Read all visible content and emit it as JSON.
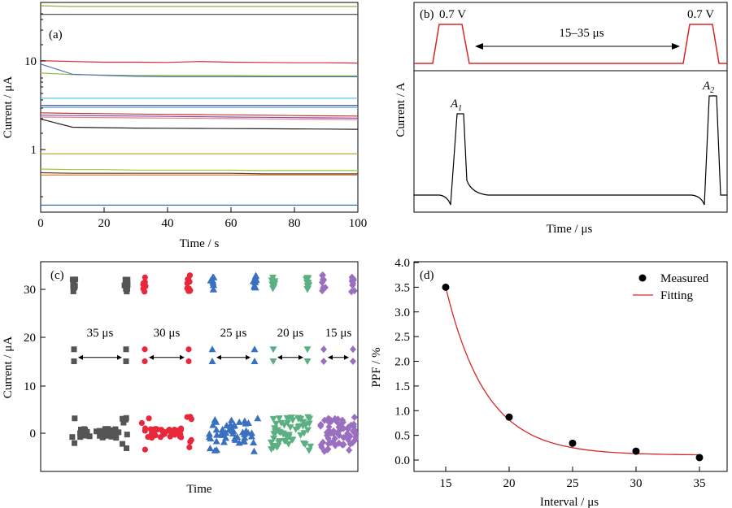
{
  "chart_data": [
    {
      "panel": "a",
      "type": "line",
      "panel_label": "(a)",
      "xlabel": "Time / s",
      "ylabel": "Current / μA",
      "xlim": [
        0,
        100
      ],
      "ylim": [
        0.25,
        60
      ],
      "yscale": "log",
      "xticks": [
        "0",
        "20",
        "40",
        "60",
        "80",
        "100"
      ],
      "yticks": [
        "1",
        "10"
      ],
      "series": [
        {
          "color": "#8db43c",
          "y": [
            55,
            54,
            54,
            54,
            54,
            54,
            54,
            54,
            54,
            54,
            54
          ]
        },
        {
          "color": "#555555",
          "y": [
            44,
            44,
            44,
            44,
            44,
            44,
            44,
            44,
            44,
            44,
            44
          ]
        },
        {
          "color": "#d8283a",
          "y": [
            13.1,
            12.8,
            12.6,
            12.6,
            12.5,
            12.8,
            12.6,
            12.5,
            12.4,
            12.4,
            12.3
          ]
        },
        {
          "color": "#8db43c",
          "y": [
            9.5,
            9.1,
            9.0,
            8.9,
            8.9,
            8.9,
            8.9,
            8.8,
            8.8,
            8.8,
            8.8
          ]
        },
        {
          "color": "#4b72be",
          "y": [
            12,
            9.2,
            8.9,
            8.7,
            8.6,
            8.6,
            8.6,
            8.6,
            8.6,
            8.6,
            8.6
          ]
        },
        {
          "color": "#5bc4e8",
          "y": [
            4.9,
            4.9,
            4.9,
            4.9,
            4.9,
            4.9,
            4.9,
            4.9,
            4.9,
            4.9,
            4.9
          ]
        },
        {
          "color": "#2a4a9c",
          "y": [
            4.05,
            4.05,
            4.05,
            4.05,
            4.05,
            4.05,
            4.05,
            4.05,
            4.05,
            4.05,
            4.05
          ]
        },
        {
          "color": "#6fa8dc",
          "y": [
            3.85,
            3.85,
            3.85,
            3.85,
            3.85,
            3.85,
            3.85,
            3.85,
            3.85,
            3.85,
            3.85
          ]
        },
        {
          "color": "#c0392b",
          "y": [
            3.35,
            3.3,
            3.28,
            3.25,
            3.22,
            3.2,
            3.18,
            3.15,
            3.12,
            3.1,
            3.08
          ]
        },
        {
          "color": "#8e44ad",
          "y": [
            3.15,
            3.12,
            3.1,
            3.08,
            3.05,
            3.03,
            3.0,
            2.98,
            2.96,
            2.94,
            2.92
          ]
        },
        {
          "color": "#e08080",
          "y": [
            3.0,
            2.98,
            2.96,
            2.94,
            2.92,
            2.9,
            2.88,
            2.86,
            2.84,
            2.82,
            2.8
          ]
        },
        {
          "color": "#222222",
          "y": [
            2.85,
            2.3,
            2.27,
            2.25,
            2.24,
            2.23,
            2.22,
            2.21,
            2.2,
            2.19,
            2.18
          ]
        },
        {
          "color": "#b8a020",
          "y": [
            1.15,
            1.15,
            1.15,
            1.15,
            1.15,
            1.15,
            1.15,
            1.15,
            1.15,
            1.15,
            1.15
          ]
        },
        {
          "color": "#9acd32",
          "y": [
            0.77,
            0.76,
            0.76,
            0.75,
            0.75,
            0.75,
            0.75,
            0.74,
            0.74,
            0.74,
            0.74
          ]
        },
        {
          "color": "#5a3a2a",
          "y": [
            0.7,
            0.69,
            0.69,
            0.69,
            0.69,
            0.69,
            0.69,
            0.68,
            0.68,
            0.68,
            0.68
          ]
        },
        {
          "color": "#e07020",
          "y": [
            0.66,
            0.66,
            0.66,
            0.66,
            0.66,
            0.66,
            0.66,
            0.66,
            0.66,
            0.66,
            0.66
          ]
        },
        {
          "color": "#3a6ec8",
          "y": [
            0.3,
            0.3,
            0.3,
            0.3,
            0.3,
            0.3,
            0.3,
            0.3,
            0.3,
            0.3,
            0.3
          ]
        }
      ],
      "x": [
        0,
        10,
        20,
        30,
        40,
        50,
        60,
        70,
        80,
        90,
        100
      ]
    },
    {
      "panel": "b",
      "type": "line",
      "panel_label": "(b)",
      "xlabel": "Time / μs",
      "ylabel": "Current / A",
      "pulse_label_1": "0.7 V",
      "pulse_label_2": "0.7 V",
      "interval_label": "15–35 μs",
      "peak_label_1": "A",
      "peak_sub_1": "1",
      "peak_label_2": "A",
      "peak_sub_2": "2",
      "peak_A2_greater_than_A1": true
    },
    {
      "panel": "c",
      "type": "scatter",
      "panel_label": "(c)",
      "xlabel": "Time",
      "ylabel": "Current / μA",
      "ylim": [
        -8,
        36
      ],
      "yticks": [
        "0",
        "10",
        "20",
        "30"
      ],
      "groups": [
        {
          "label": "35 μs",
          "color": "#555555",
          "marker": "square"
        },
        {
          "label": "30 μs",
          "color": "#e8283a",
          "marker": "circle"
        },
        {
          "label": "25 μs",
          "color": "#3a70c0",
          "marker": "triangle-up"
        },
        {
          "label": "20 μs",
          "color": "#5ab080",
          "marker": "triangle-down"
        },
        {
          "label": "15 μs",
          "color": "#9b6fc0",
          "marker": "diamond"
        }
      ]
    },
    {
      "panel": "d",
      "type": "scatter",
      "panel_label": "(d)",
      "xlabel": "Interval / μs",
      "ylabel": "PPF / %",
      "xlim": [
        13.5,
        36.5
      ],
      "ylim": [
        -0.2,
        4.0
      ],
      "xticks": [
        "15",
        "20",
        "25",
        "30",
        "35"
      ],
      "yticks": [
        "0.0",
        "0.5",
        "1.0",
        "1.5",
        "2.0",
        "2.5",
        "3.0",
        "3.5",
        "4.0"
      ],
      "legend": [
        {
          "label": "Measured",
          "kind": "dot"
        },
        {
          "label": "Fitting",
          "kind": "line",
          "color": "#d62728"
        }
      ],
      "legend_position": "top-right",
      "measured": {
        "x": [
          15,
          20,
          25,
          30,
          35
        ],
        "y": [
          3.5,
          0.87,
          0.34,
          0.18,
          0.05
        ]
      },
      "fit": {
        "y0": 0.1,
        "A": 3.4,
        "t0": 15,
        "tau": 3.2
      }
    }
  ]
}
